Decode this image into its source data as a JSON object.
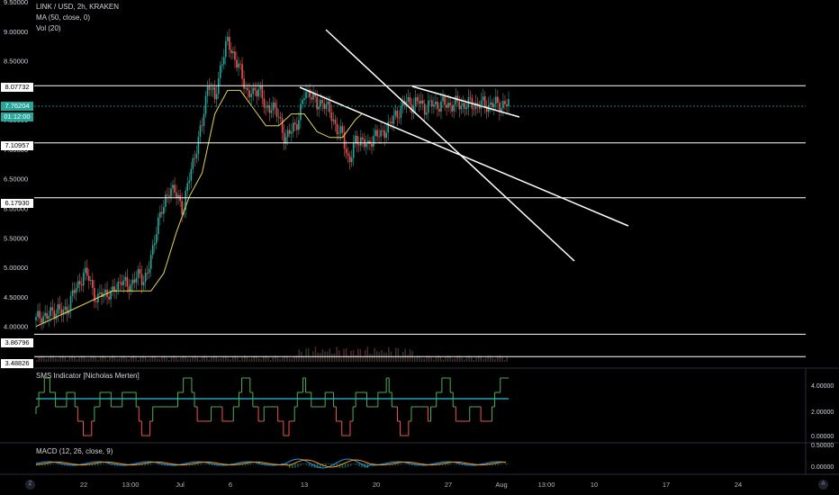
{
  "legend": {
    "title": "LINK / USD, 2h, KRAKEN",
    "ma": "MA (50, close, 0)",
    "vol": "Vol (20)",
    "sms": "SMS Indicator [Nicholas Merten]",
    "macd": "MACD (12, 26, close, 9)"
  },
  "badges": {
    "current_price": "7.76204",
    "countdown": "01:12:00"
  },
  "colors": {
    "background": "#000000",
    "candle_up": "#26a69a",
    "candle_down": "#ef5350",
    "ma": "#e3d454",
    "drawing": "#ffffff",
    "sms_high": "#4caf50",
    "sms_low": "#ef5350",
    "sms_mid": "#26c6da",
    "macd": "#2196f3",
    "signal": "#ff9800"
  },
  "corner_buttons": {
    "left": "Z",
    "right": "A"
  },
  "chart_data": {
    "type": "line",
    "symbol": "LINK / USD",
    "interval": "2h",
    "exchange": "KRAKEN",
    "x_ticks": [
      "22",
      "13:00",
      "Jul",
      "6",
      "13",
      "20",
      "27",
      "Aug",
      "13:00",
      "10",
      "17",
      "24"
    ],
    "y_ticks": [
      "9.00000",
      "8.50000",
      "7.50000",
      "7.00000",
      "6.50000",
      "6.00000",
      "5.50000",
      "5.00000",
      "4.50000",
      "4.00000"
    ],
    "y_top_label": "9.50000",
    "ylim": [
      3.4,
      9.5
    ],
    "horizontal_levels": [
      "8.07732",
      "7.10957",
      "6.17930",
      "3.86796",
      "3.48826"
    ],
    "price_series": {
      "name": "LINK / USD",
      "x": [
        0,
        0.04,
        0.09,
        0.13,
        0.17,
        0.21,
        0.25,
        0.29,
        0.33,
        0.37,
        0.42,
        0.45,
        0.48,
        0.51,
        0.55,
        0.59,
        0.63,
        0.67,
        0.71,
        0.75,
        0.79,
        0.83,
        0.87,
        0.91,
        0.95,
        1.0,
        1.05,
        1.1,
        1.15,
        1.2,
        1.25,
        1.3,
        1.35,
        1.4,
        1.45,
        1.5,
        1.55,
        1.6,
        1.65,
        1.7,
        1.75,
        1.8,
        1.85,
        1.9,
        1.95,
        2.0,
        2.05,
        2.1,
        2.15,
        2.2,
        2.25,
        2.3,
        2.35,
        2.4,
        2.45,
        2.5,
        2.55,
        2.6,
        2.65,
        2.7,
        2.75,
        2.8,
        2.85,
        2.9,
        2.95,
        3.0,
        3.05,
        3.1,
        3.15,
        3.2,
        3.25,
        3.3,
        3.35,
        3.4,
        3.45,
        3.5,
        3.55,
        3.6,
        3.65,
        3.7
      ],
      "values": [
        4.1,
        4.2,
        4.15,
        4.25,
        4.3,
        4.2,
        4.35,
        4.55,
        4.7,
        4.9,
        4.8,
        4.6,
        4.4,
        4.55,
        4.6,
        4.5,
        4.7,
        4.8,
        4.65,
        4.75,
        4.85,
        4.8,
        4.9,
        5.2,
        5.8,
        6.0,
        6.4,
        6.2,
        6.0,
        6.5,
        7.0,
        7.4,
        8.2,
        7.8,
        8.5,
        8.8,
        8.6,
        8.3,
        8.0,
        7.9,
        8.1,
        7.6,
        7.8,
        7.5,
        7.2,
        7.3,
        7.5,
        7.9,
        8.0,
        7.7,
        7.85,
        7.6,
        7.4,
        7.2,
        6.8,
        7.1,
        7.2,
        7.0,
        7.3,
        7.2,
        7.4,
        7.5,
        7.7,
        7.8,
        7.76,
        7.8,
        7.7,
        7.76,
        7.76,
        7.76,
        7.76,
        7.76,
        7.76,
        7.76,
        7.76,
        7.76,
        7.76,
        7.76,
        7.76,
        7.76
      ]
    },
    "ma_series": {
      "name": "MA (50, close, 0)",
      "x": [
        0,
        0.3,
        0.6,
        0.9,
        1.0,
        1.1,
        1.2,
        1.3,
        1.4,
        1.5,
        1.6,
        1.7,
        1.8,
        1.9,
        2.0,
        2.1,
        2.2,
        2.3,
        2.4,
        2.5,
        2.55
      ],
      "values": [
        4.0,
        4.3,
        4.6,
        4.6,
        4.9,
        5.6,
        6.2,
        6.6,
        7.6,
        8.0,
        8.0,
        7.7,
        7.4,
        7.4,
        7.6,
        7.6,
        7.3,
        7.2,
        7.2,
        7.5,
        7.6
      ]
    }
  }
}
